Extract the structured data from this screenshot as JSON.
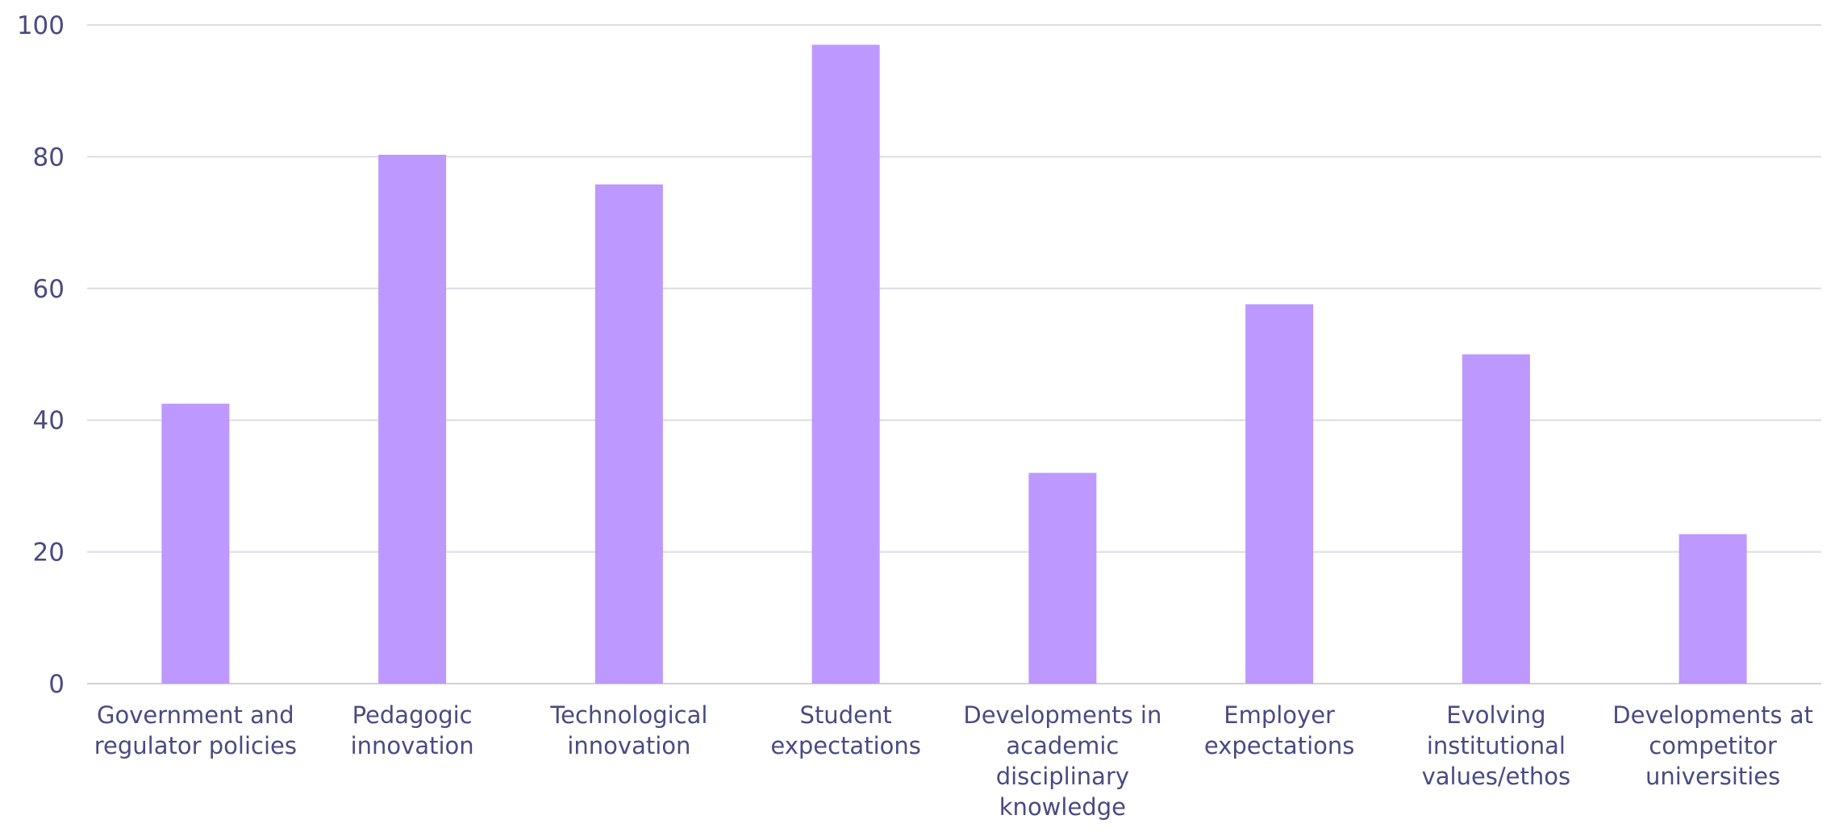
{
  "chart_data": {
    "type": "bar",
    "title": "",
    "xlabel": "",
    "ylabel": "",
    "ylim": [
      0,
      100
    ],
    "yticks": [
      0,
      20,
      40,
      60,
      80,
      100
    ],
    "grid": true,
    "bar_color": "#bd98ff",
    "text_color": "#4a4a82",
    "grid_color": "#dcdce3",
    "categories": [
      [
        "Government and",
        "regulator policies"
      ],
      [
        "Pedagogic",
        "innovation"
      ],
      [
        "Technological",
        "innovation"
      ],
      [
        "Student",
        "expectations"
      ],
      [
        "Developments in",
        "academic",
        "disciplinary",
        "knowledge"
      ],
      [
        "Employer",
        "expectations"
      ],
      [
        "Evolving",
        "institutional",
        "values/ethos"
      ],
      [
        "Developments at",
        "competitor",
        "universities"
      ]
    ],
    "values": [
      42.5,
      80.3,
      75.8,
      97,
      32,
      57.6,
      50,
      22.7
    ]
  }
}
